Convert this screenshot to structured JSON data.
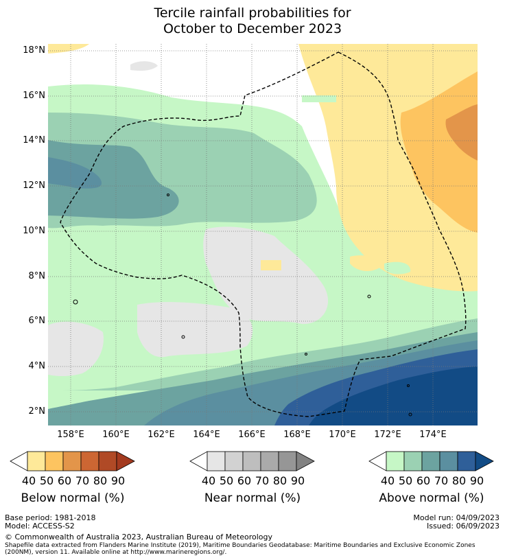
{
  "title_line1": "Tercile rainfall probabilities for",
  "title_line2": "October to December 2023",
  "latitude_labels": [
    "18°N",
    "16°N",
    "14°N",
    "12°N",
    "10°N",
    "8°N",
    "6°N",
    "4°N",
    "2°N"
  ],
  "longitude_labels": [
    "158°E",
    "160°E",
    "162°E",
    "164°E",
    "166°E",
    "168°E",
    "170°E",
    "172°E",
    "174°E"
  ],
  "legends": {
    "below": {
      "title": "Below normal (%)",
      "ticks": [
        "40",
        "50",
        "60",
        "70",
        "80",
        "90"
      ],
      "colors": [
        "#ffffff",
        "#fee999",
        "#fdc460",
        "#e3954a",
        "#cc6633",
        "#b04a26",
        "#a33a1f"
      ]
    },
    "near": {
      "title": "Near normal (%)",
      "ticks": [
        "40",
        "50",
        "60",
        "70",
        "80",
        "90"
      ],
      "colors": [
        "#ffffff",
        "#e6e6e6",
        "#d2d2d2",
        "#bebebe",
        "#aaaaaa",
        "#969696",
        "#828282"
      ]
    },
    "above": {
      "title": "Above normal (%)",
      "ticks": [
        "40",
        "50",
        "60",
        "70",
        "80",
        "90"
      ],
      "colors": [
        "#ffffff",
        "#c6f7c6",
        "#9bd1b3",
        "#6ca3a0",
        "#5b8fa0",
        "#2f5f99",
        "#124b85"
      ]
    }
  },
  "map_colors": {
    "below_40": "#fee999",
    "below_50": "#fdc460",
    "below_60": "#e3954a",
    "near_40": "#e6e6e6",
    "above_40": "#c6f7c6",
    "above_50": "#9bd1b3",
    "above_60": "#6ca3a0",
    "above_70": "#5b8fa0",
    "above_80": "#2f5f99",
    "above_90": "#124b85"
  },
  "footer": {
    "base_period": "Base period: 1981-2018",
    "model": "Model: ACCESS-S2",
    "model_run": "Model run: 04/09/2023",
    "issued": "Issued: 06/09/2023",
    "copyright": "© Commonwealth of Australia 2023, Australian Bureau of Meteorology",
    "shapefile_line1": "Shapefile data extracted from Flanders Marine Institute (2019), Maritime Boundaries Geodatabase: Maritime Boundaries and Exclusive Economic Zones",
    "shapefile_line2": "(200NM), version 11. Available online at http://www.marineregions.org/."
  }
}
